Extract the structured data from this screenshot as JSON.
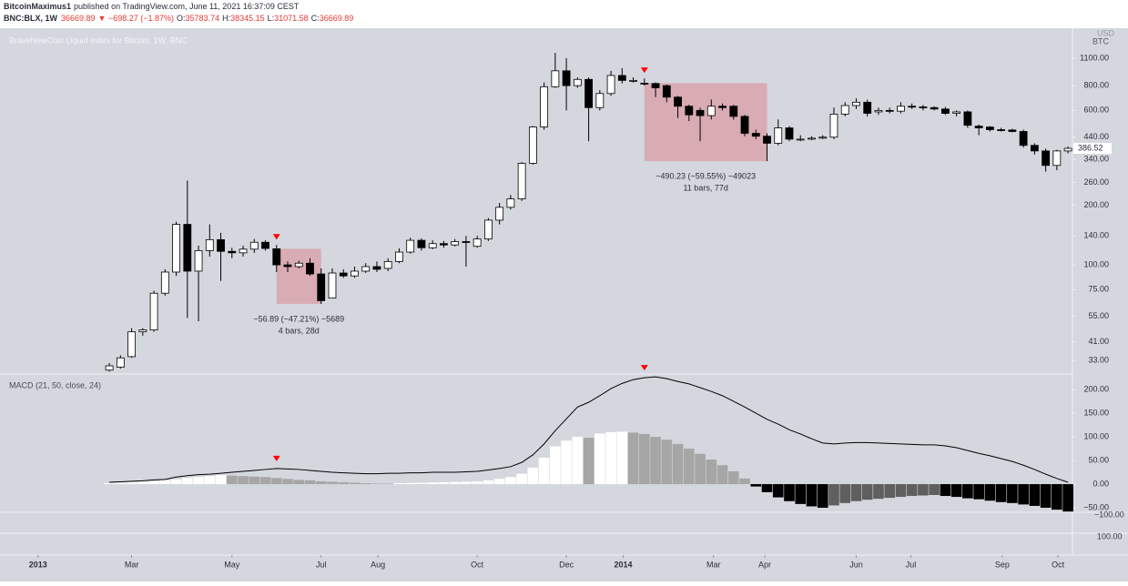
{
  "header": {
    "author": "BitcoinMaximus1",
    "published": "published on TradingView.com, June 11, 2021 16:37:09 CEST",
    "symbol": "BNC:BLX, 1W",
    "last": "36669.89",
    "change": "▼ −698.27 (−1.87%)",
    "quote": [
      [
        "O:",
        "35783.74"
      ],
      [
        "H:",
        "38345.15"
      ],
      [
        "L:",
        "31071.58"
      ],
      [
        "C:",
        "36669.89"
      ]
    ]
  },
  "chart_data": [
    {
      "type": "candlestick",
      "title": "BraveNewCoin Liquid Index for Bitcoin, 1W, BNC",
      "axis_units": [
        "USD",
        "BTC"
      ],
      "log_scale": true,
      "grid": false,
      "up_color": "#ffffff",
      "down_color": "#000000",
      "ylim": [
        28.5,
        1525
      ],
      "yticks": [
        {
          "value": 1100,
          "label": "1100.00"
        },
        {
          "value": 800,
          "label": "800.00"
        },
        {
          "value": 600,
          "label": "600.00"
        },
        {
          "value": 440,
          "label": "440.00"
        },
        {
          "value": 340,
          "label": "340.00"
        },
        {
          "value": 260,
          "label": "260.00"
        },
        {
          "value": 200,
          "label": "200.00"
        },
        {
          "value": 140,
          "label": "140.00"
        },
        {
          "value": 100,
          "label": "100.00"
        },
        {
          "value": 75,
          "label": "75.00"
        },
        {
          "value": 55,
          "label": "55.00"
        },
        {
          "value": 41,
          "label": "41.00"
        },
        {
          "value": 33,
          "label": "33.00"
        }
      ],
      "xlim": [
        -9.4,
        86.4
      ],
      "xticks": [
        {
          "value": -6.4,
          "label": "2013"
        },
        {
          "value": 2.0,
          "label": "Mar"
        },
        {
          "value": 11.0,
          "label": "May"
        },
        {
          "value": 19.0,
          "label": "Jul"
        },
        {
          "value": 24.1,
          "label": "Aug"
        },
        {
          "value": 33.0,
          "label": "Oct"
        },
        {
          "value": 41.0,
          "label": "Dec"
        },
        {
          "value": 46.1,
          "label": "2014"
        },
        {
          "value": 54.2,
          "label": "Mar"
        },
        {
          "value": 58.8,
          "label": "Apr"
        },
        {
          "value": 67.0,
          "label": "Jun"
        },
        {
          "value": 71.9,
          "label": "Jul"
        },
        {
          "value": 80.1,
          "label": "Sep"
        },
        {
          "value": 85.1,
          "label": "Oct"
        }
      ],
      "ohlc": [
        [
          29.5,
          32,
          29,
          31
        ],
        [
          30.5,
          35,
          30,
          34
        ],
        [
          34.5,
          48,
          34,
          46
        ],
        [
          46,
          48,
          44,
          47
        ],
        [
          47,
          74,
          46,
          72
        ],
        [
          72,
          95,
          70,
          92
        ],
        [
          92,
          165,
          88,
          160
        ],
        [
          160,
          266,
          54,
          93
        ],
        [
          93,
          125,
          52,
          118
        ],
        [
          118,
          160,
          110,
          134
        ],
        [
          134,
          145,
          83,
          117
        ],
        [
          117,
          122,
          108,
          115
        ],
        [
          115,
          125,
          110,
          120
        ],
        [
          120,
          135,
          115,
          130
        ],
        [
          130,
          133,
          118,
          121
        ],
        [
          120.5,
          126,
          92,
          100
        ],
        [
          100,
          104,
          92,
          98
        ],
        [
          98,
          105,
          96,
          102
        ],
        [
          102,
          108,
          88,
          90
        ],
        [
          90,
          96,
          63.61,
          66
        ],
        [
          68,
          96,
          68,
          91
        ],
        [
          91,
          95,
          86,
          88
        ],
        [
          88,
          98,
          86,
          93
        ],
        [
          93,
          102,
          91,
          98
        ],
        [
          98,
          104,
          92,
          95
        ],
        [
          96,
          108,
          93,
          104
        ],
        [
          104,
          121,
          102,
          116
        ],
        [
          116,
          137,
          114,
          133
        ],
        [
          133,
          136,
          118,
          122
        ],
        [
          122,
          133,
          120,
          128
        ],
        [
          128,
          132,
          122,
          126
        ],
        [
          126,
          135,
          124,
          131
        ],
        [
          131,
          140,
          98,
          130
        ],
        [
          124,
          140,
          122,
          135
        ],
        [
          135,
          172,
          132,
          168
        ],
        [
          168,
          205,
          160,
          195
        ],
        [
          195,
          225,
          190,
          215
        ],
        [
          215,
          330,
          210,
          325
        ],
        [
          325,
          500,
          320,
          495
        ],
        [
          495,
          830,
          480,
          790
        ],
        [
          790,
          1170,
          780,
          950
        ],
        [
          950,
          1100,
          600,
          800
        ],
        [
          800,
          880,
          780,
          860
        ],
        [
          860,
          880,
          420,
          620
        ],
        [
          620,
          760,
          600,
          730
        ],
        [
          730,
          950,
          710,
          900
        ],
        [
          900,
          980,
          820,
          850
        ],
        [
          850,
          880,
          830,
          850
        ],
        [
          823.2,
          870,
          800,
          820
        ],
        [
          820,
          830,
          700,
          780
        ],
        [
          800,
          810,
          660,
          700
        ],
        [
          700,
          710,
          550,
          630
        ],
        [
          630,
          640,
          530,
          570
        ],
        [
          600,
          620,
          420,
          565
        ],
        [
          565,
          680,
          540,
          630
        ],
        [
          630,
          650,
          600,
          620
        ],
        [
          630,
          640,
          540,
          560
        ],
        [
          560,
          570,
          445,
          460
        ],
        [
          460,
          480,
          430,
          445
        ],
        [
          445,
          460,
          332.97,
          410
        ],
        [
          410,
          540,
          400,
          490
        ],
        [
          490,
          500,
          420,
          430
        ],
        [
          430,
          450,
          420,
          430
        ],
        [
          430,
          445,
          425,
          435
        ],
        [
          435,
          450,
          430,
          440
        ],
        [
          440,
          620,
          430,
          575
        ],
        [
          575,
          660,
          560,
          635
        ],
        [
          635,
          690,
          610,
          660
        ],
        [
          660,
          680,
          560,
          580
        ],
        [
          590,
          620,
          570,
          600
        ],
        [
          600,
          620,
          580,
          595
        ],
        [
          595,
          660,
          580,
          630
        ],
        [
          630,
          650,
          610,
          625
        ],
        [
          625,
          640,
          600,
          620
        ],
        [
          620,
          630,
          600,
          610
        ],
        [
          610,
          625,
          570,
          580
        ],
        [
          580,
          600,
          560,
          590
        ],
        [
          590,
          600,
          490,
          505
        ],
        [
          500,
          510,
          450,
          490
        ],
        [
          495,
          500,
          470,
          480
        ],
        [
          480,
          490,
          470,
          478
        ],
        [
          478,
          485,
          465,
          470
        ],
        [
          470,
          480,
          390,
          400
        ],
        [
          400,
          410,
          360,
          375
        ],
        [
          375,
          385,
          295,
          317
        ],
        [
          317,
          380,
          300,
          375
        ],
        [
          375,
          395,
          365,
          386.52
        ]
      ],
      "signals": [
        15,
        48
      ],
      "signal_color": "#ff0000",
      "measures": [
        {
          "bars": [
            15,
            19
          ],
          "from": 120.5,
          "to": 63.61,
          "color": "#d9a3aa",
          "labels": [
            "−56.89 (−47.21%) −5689",
            "4 bars, 28d"
          ]
        },
        {
          "bars": [
            48,
            59
          ],
          "from": 823.2,
          "to": 332.97,
          "color": "#d9a3aa",
          "labels": [
            "−490.23 (−59.55%) −49023",
            "11 bars, 77d"
          ]
        }
      ]
    },
    {
      "type": "macd",
      "title": "MACD (21, 50, close, 24)",
      "line_color": "#000000",
      "hist_colors": [
        "#ffffff",
        "#a6a6a6",
        "#000000",
        "#5f5f5f"
      ],
      "ylim": [
        -150,
        231
      ],
      "yticks": [
        {
          "value": 200,
          "label": "200.00"
        },
        {
          "value": 150,
          "label": "150.00"
        },
        {
          "value": 100,
          "label": "100.00"
        },
        {
          "value": 50,
          "label": "50.00"
        },
        {
          "value": 0,
          "label": "0.00"
        },
        {
          "value": -50,
          "label": "−50.00"
        }
      ],
      "lower_scale_labels": [
        "−100.00",
        "100.00"
      ],
      "macd": [
        4,
        5,
        6,
        7,
        9,
        10,
        15,
        18,
        20,
        21,
        23,
        25,
        27,
        29,
        31,
        33,
        32,
        31,
        29,
        27,
        25,
        24,
        23,
        22,
        22,
        23,
        23,
        24,
        24,
        25,
        25,
        25,
        26,
        27,
        30,
        33,
        37,
        46,
        62,
        85,
        113,
        138,
        163,
        173,
        187,
        202,
        213,
        221,
        225,
        227,
        223,
        217,
        212,
        204,
        196,
        187,
        175,
        163,
        150,
        137,
        127,
        115,
        106,
        96,
        87,
        85,
        87,
        88,
        88,
        87,
        86,
        85,
        84,
        83,
        83,
        81,
        77,
        71,
        65,
        60,
        54,
        48,
        40,
        31,
        21,
        12,
        4
      ],
      "histogram": [
        2,
        3,
        4,
        5,
        6,
        8,
        10,
        13,
        15,
        17,
        19,
        18,
        17,
        16,
        15,
        13,
        11,
        9,
        8,
        6,
        5,
        4,
        3,
        2,
        1,
        0.8,
        2,
        2.5,
        3,
        3.5,
        4,
        4.5,
        5,
        6,
        8,
        11,
        15,
        22,
        35,
        56,
        80,
        92,
        100,
        98,
        107,
        110,
        111,
        109,
        106,
        100,
        94,
        85,
        75,
        64,
        52,
        40,
        27,
        12,
        -5,
        -17,
        -28,
        -36,
        -42,
        -47,
        -50,
        -45,
        -40,
        -36,
        -33,
        -31,
        -29,
        -27,
        -25,
        -24,
        -23,
        -25,
        -27,
        -30,
        -32,
        -35,
        -38,
        -40,
        -43,
        -46,
        -50,
        -54,
        -58
      ]
    }
  ]
}
